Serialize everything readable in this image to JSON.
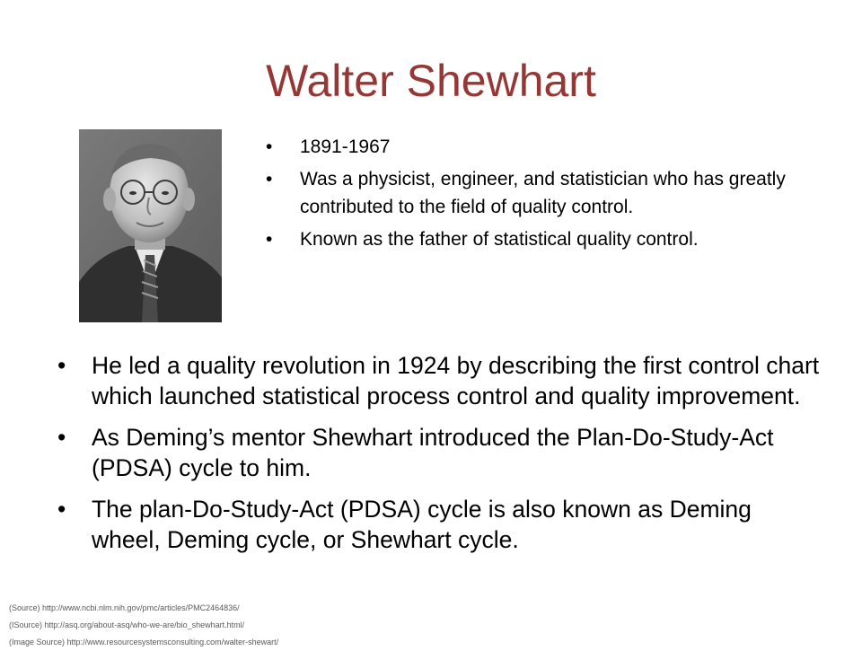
{
  "slide": {
    "title": "Walter Shewhart",
    "title_color": "#953735",
    "bullet_glyph": "•",
    "top_bullets": [
      "1891-1967",
      "Was a physicist, engineer, and statistician who has greatly contributed to the field of quality control.",
      "Known as the father of statistical quality control."
    ],
    "main_bullets": [
      "He led a quality revolution in 1924 by describing the first control chart which launched statistical process control and quality improvement.",
      "As Deming’s mentor Shewhart introduced the Plan-Do-Study-Act (PDSA) cycle to him.",
      "The plan-Do-Study-Act (PDSA) cycle is also known as Deming wheel, Deming cycle, or Shewhart cycle."
    ],
    "sources": [
      "(Source) http://www.ncbi.nlm.nih.gov/pmc/articles/PMC2464836/",
      "(ISource) http://asq.org/about-asq/who-we-are/bio_shewhart.html/",
      "(Image Source) http://www.resourcesystemsconsulting.com/walter-shewart/"
    ]
  }
}
